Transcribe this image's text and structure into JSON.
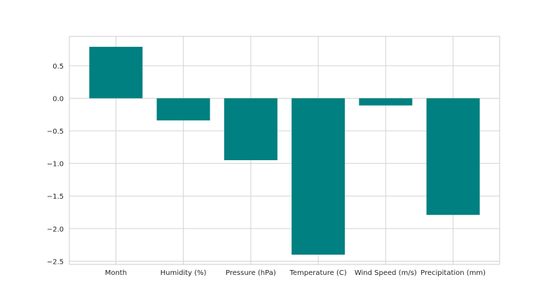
{
  "chart_data": {
    "type": "bar",
    "categories": [
      "Month",
      "Humidity (%)",
      "Pressure (hPa)",
      "Temperature (C)",
      "Wind Speed (m/s)",
      "Precipitation (mm)"
    ],
    "values": [
      0.79,
      -0.34,
      -0.95,
      -2.4,
      -0.11,
      -1.79
    ],
    "ylim": [
      -2.55,
      0.95
    ],
    "yticks": [
      0.5,
      0.0,
      -0.5,
      -1.0,
      -1.5,
      -2.0,
      -2.5
    ],
    "ytick_labels": [
      "0.5",
      "0.0",
      "−0.5",
      "−1.0",
      "−1.5",
      "−2.0",
      "−2.5"
    ],
    "grid": true,
    "colors": {
      "bar": "#008080",
      "grid": "#d3d3d3",
      "frame": "#cccccc",
      "text": "#262626"
    }
  }
}
